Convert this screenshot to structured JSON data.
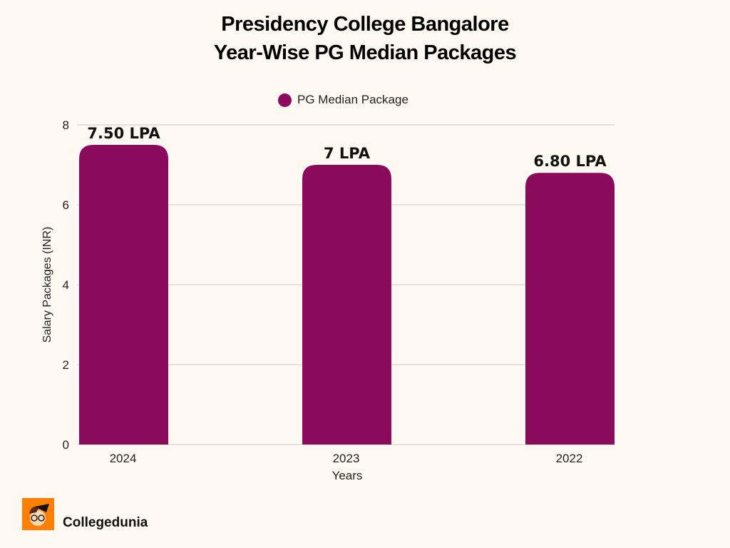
{
  "title_line1": "Presidency College Bangalore",
  "title_line2": "Year-Wise PG Median Packages",
  "brand": "Collegedunia",
  "chart_data": {
    "type": "bar",
    "title": "Presidency College Bangalore Year-Wise PG Median Packages",
    "categories": [
      "2024",
      "2023",
      "2022"
    ],
    "series": [
      {
        "name": "PG Median Package",
        "values": [
          7.5,
          7,
          6.8
        ],
        "color": "#8a0a5c"
      }
    ],
    "data_labels": [
      "7.50 LPA",
      "7 LPA",
      "6.80 LPA"
    ],
    "xlabel": "Years",
    "ylabel": "Salary Packages (INR)",
    "ylim": [
      0,
      8
    ],
    "yticks": [
      0,
      2,
      4,
      6,
      8
    ],
    "grid": true,
    "legend": "top-center"
  }
}
